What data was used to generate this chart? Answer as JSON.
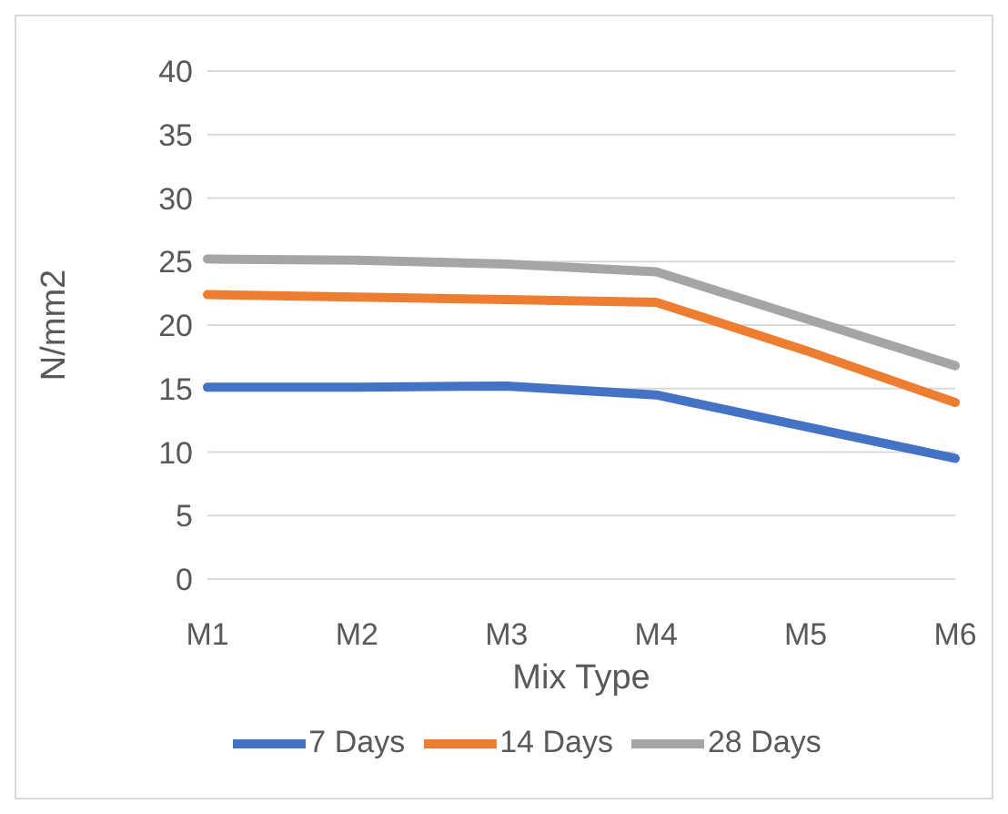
{
  "chart_data": {
    "type": "line",
    "xlabel": "Mix Type",
    "ylabel": "N/mm2",
    "categories": [
      "M1",
      "M2",
      "M3",
      "M4",
      "M5",
      "M6"
    ],
    "series": [
      {
        "name": "7 Days",
        "color": "#4472c4",
        "values": [
          15.1,
          15.1,
          15.2,
          14.5,
          12,
          9.5
        ]
      },
      {
        "name": "14 Days",
        "color": "#ed7d31",
        "values": [
          22.4,
          22.2,
          22,
          21.8,
          18,
          13.9
        ]
      },
      {
        "name": "28 Days",
        "color": "#a5a5a5",
        "values": [
          25.2,
          25.1,
          24.8,
          24.2,
          20.5,
          16.8
        ]
      }
    ],
    "ylim": [
      0,
      40
    ],
    "yticks": [
      0,
      5,
      10,
      15,
      20,
      25,
      30,
      35,
      40
    ],
    "grid": "y",
    "legend": "bottom",
    "marker": "none",
    "line_style": "solid"
  }
}
